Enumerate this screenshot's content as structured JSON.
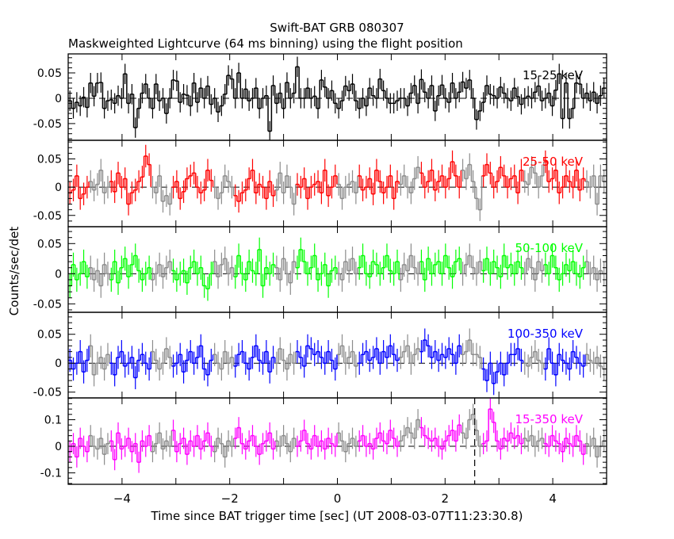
{
  "chart_data": {
    "type": "line",
    "title": "Swift-BAT GRB 080307",
    "subtitle": "Maskweighted Lightcurve (64 ms binning) using the flight position",
    "xlabel": "Time since BAT trigger time [sec] (UT 2008-03-07T11:23:30.8)",
    "ylabel": "Counts/sec/det",
    "xlim": [
      -5,
      5
    ],
    "x_ticks": [
      "-4",
      "-2",
      "0",
      "2",
      "4"
    ],
    "bin_start": -5.0,
    "bin_width": 0.064,
    "marker_line_x": 2.55,
    "series": [
      {
        "name": "15-25 keV",
        "color": "#000000",
        "ylim": [
          -0.083,
          0.0875
        ],
        "y_ticks": [
          "0.05",
          "0",
          "-0.05"
        ],
        "error": 0.02,
        "values": [
          -0.005,
          -0.02,
          -0.008,
          -0.015,
          0.002,
          -0.018,
          0.03,
          0.004,
          0.03,
          0.031,
          -0.02,
          -0.005,
          -0.003,
          -0.01,
          0.005,
          0.0,
          0.048,
          -0.01,
          0.008,
          -0.058,
          -0.02,
          0.01,
          0.028,
          0.0,
          -0.02,
          0.028,
          -0.005,
          0.0,
          -0.03,
          0.0,
          0.036,
          0.034,
          -0.008,
          0.008,
          0.006,
          -0.015,
          0.03,
          -0.008,
          0.02,
          0.0,
          0.024,
          -0.012,
          0.0,
          -0.027,
          -0.015,
          0.008,
          0.045,
          0.038,
          0.0,
          0.05,
          0.0,
          0.018,
          -0.005,
          0.0,
          0.02,
          -0.02,
          0.0,
          0.005,
          -0.065,
          0.025,
          -0.01,
          0.01,
          -0.02,
          0.031,
          0.0,
          0.01,
          0.062,
          0.0,
          0.0,
          0.02,
          0.0,
          0.004,
          -0.02,
          0.036,
          0.022,
          0.0,
          0.015,
          -0.01,
          -0.02,
          -0.005,
          0.024,
          0.015,
          0.028,
          -0.005,
          -0.02,
          0.0,
          -0.015,
          0.02,
          0.005,
          0.0,
          0.038,
          0.015,
          0.0,
          -0.01,
          -0.01,
          -0.005,
          0.0,
          0.0,
          -0.015,
          0.01,
          0.025,
          -0.01,
          0.037,
          0.012,
          0.0,
          0.025,
          -0.025,
          0.005,
          0.026,
          0.0,
          -0.008,
          0.03,
          0.0,
          0.012,
          0.032,
          0.02,
          0.036,
          0.0,
          -0.042,
          -0.025,
          -0.008,
          0.025,
          0.008,
          0.005,
          0.0,
          0.022,
          0.01,
          0.0,
          -0.005,
          0.02,
          0.003,
          -0.012,
          0.0,
          0.004,
          0.0,
          0.012,
          0.024,
          -0.005,
          0.0,
          0.01,
          -0.015,
          0.016,
          0.048,
          -0.04,
          0.03,
          -0.04,
          -0.02,
          0.03,
          0.028,
          0.0,
          0.01,
          -0.005,
          0.012,
          -0.01,
          0.005,
          0.02
        ]
      },
      {
        "name": "25-50 keV",
        "color": "#ff0000",
        "ylim": [
          -0.07,
          0.083
        ],
        "y_ticks": [
          "0.05",
          "0",
          "-0.05"
        ],
        "error": 0.02,
        "values": [
          -0.01,
          -0.005,
          0.02,
          -0.02,
          -0.012,
          0.0,
          0.01,
          -0.005,
          0.005,
          0.03,
          -0.01,
          0.0,
          0.01,
          -0.008,
          0.025,
          0.0,
          0.015,
          -0.03,
          -0.01,
          -0.005,
          0.01,
          0.018,
          0.055,
          0.04,
          0.0,
          -0.01,
          0.02,
          -0.025,
          -0.015,
          -0.03,
          0.0,
          0.01,
          -0.02,
          -0.008,
          0.015,
          0.02,
          0.025,
          0.0,
          -0.01,
          -0.005,
          0.03,
          0.012,
          0.0,
          -0.02,
          -0.01,
          0.02,
          0.01,
          0.0,
          -0.015,
          -0.025,
          -0.01,
          -0.005,
          0.015,
          0.03,
          -0.01,
          0.005,
          0.0,
          -0.02,
          0.01,
          -0.015,
          -0.005,
          0.025,
          -0.01,
          0.02,
          0.0,
          -0.03,
          0.005,
          0.0,
          0.015,
          -0.02,
          0.0,
          0.005,
          0.01,
          -0.01,
          0.03,
          -0.015,
          0.0,
          0.02,
          0.005,
          -0.02,
          0.0,
          0.005,
          0.01,
          -0.01,
          0.02,
          -0.005,
          0.0,
          0.015,
          -0.012,
          0.03,
          0.01,
          -0.01,
          0.0,
          0.02,
          -0.02,
          0.01,
          0.005,
          0.02,
          0.0,
          -0.01,
          0.015,
          0.035,
          0.025,
          0.0,
          0.01,
          0.03,
          -0.005,
          0.01,
          0.02,
          0.0,
          0.015,
          0.045,
          0.02,
          0.0,
          0.03,
          0.015,
          0.04,
          0.01,
          -0.02,
          -0.04,
          0.02,
          0.04,
          0.025,
          0.0,
          0.01,
          0.035,
          0.02,
          0.0,
          0.015,
          0.02,
          -0.01,
          0.03,
          0.01,
          0.005,
          0.035,
          0.025,
          0.0,
          0.02,
          0.045,
          0.01,
          0.015,
          0.03,
          -0.01,
          0.0,
          0.02,
          0.01,
          0.0,
          0.03,
          -0.005,
          0.015,
          0.01,
          0.0,
          0.02,
          -0.03,
          0.02,
          0.01
        ]
      },
      {
        "name": "50-100 keV",
        "color": "#00ff00",
        "ylim": [
          -0.064,
          0.078
        ],
        "y_ticks": [
          "0.05",
          "0",
          "-0.05"
        ],
        "error": 0.02,
        "values": [
          -0.02,
          0.015,
          -0.01,
          0.0,
          0.02,
          -0.005,
          0.01,
          -0.01,
          0.005,
          -0.02,
          0.015,
          0.0,
          -0.01,
          0.02,
          -0.015,
          0.01,
          0.025,
          -0.005,
          0.015,
          0.03,
          0.005,
          -0.01,
          0.0,
          0.01,
          -0.01,
          0.0,
          0.015,
          -0.005,
          0.01,
          0.02,
          0.005,
          -0.01,
          0.0,
          0.005,
          -0.015,
          0.01,
          0.02,
          0.0,
          0.01,
          -0.02,
          -0.025,
          0.0,
          0.02,
          -0.005,
          0.015,
          0.025,
          0.0,
          0.01,
          -0.005,
          0.03,
          0.0,
          -0.01,
          0.02,
          0.005,
          0.0,
          0.04,
          -0.02,
          0.01,
          0.0,
          0.015,
          0.01,
          -0.01,
          0.025,
          0.0,
          -0.015,
          0.02,
          0.01,
          0.04,
          0.02,
          0.0,
          0.01,
          0.03,
          -0.01,
          0.0,
          0.015,
          -0.02,
          0.005,
          0.01,
          0.0,
          -0.01,
          0.02,
          0.005,
          0.025,
          0.0,
          0.01,
          0.03,
          0.0,
          -0.005,
          0.02,
          0.015,
          0.0,
          0.01,
          0.03,
          0.005,
          0.0,
          0.02,
          -0.01,
          0.015,
          0.005,
          0.03,
          0.01,
          0.0,
          0.02,
          -0.01,
          0.025,
          0.0,
          0.015,
          0.02,
          0.0,
          0.03,
          0.01,
          -0.005,
          0.02,
          0.025,
          0.0,
          0.015,
          0.03,
          0.01,
          0.0,
          0.02,
          0.005,
          0.025,
          0.0,
          0.02,
          0.01,
          -0.005,
          0.03,
          0.01,
          0.015,
          0.0,
          0.02,
          0.01,
          0.0,
          0.025,
          0.01,
          -0.01,
          0.02,
          0.005,
          0.015,
          0.0,
          0.03,
          0.01,
          -0.01,
          0.0,
          0.015,
          0.005,
          0.02,
          0.0,
          -0.005,
          0.01,
          0.02,
          0.0,
          0.01,
          -0.01,
          0.005,
          0.0
        ]
      },
      {
        "name": "100-350 keV",
        "color": "#0000ff",
        "ylim": [
          -0.06,
          0.088
        ],
        "y_ticks": [
          "0.05",
          "0",
          "-0.05"
        ],
        "error": 0.02,
        "values": [
          0.005,
          -0.01,
          0.0,
          0.02,
          -0.015,
          0.005,
          0.03,
          -0.02,
          0.0,
          0.01,
          -0.01,
          0.015,
          0.0,
          -0.02,
          0.01,
          0.02,
          -0.005,
          0.0,
          0.01,
          -0.025,
          0.005,
          0.015,
          0.0,
          -0.01,
          0.02,
          0.005,
          -0.01,
          0.0,
          0.025,
          0.01,
          -0.005,
          0.0,
          0.015,
          -0.015,
          0.005,
          0.02,
          0.0,
          0.01,
          0.03,
          -0.01,
          -0.02,
          0.005,
          0.015,
          0.0,
          -0.01,
          0.02,
          0.0,
          0.01,
          -0.005,
          0.015,
          0.02,
          0.0,
          -0.01,
          0.01,
          0.03,
          0.005,
          0.0,
          0.02,
          -0.015,
          0.01,
          0.0,
          0.025,
          0.005,
          -0.01,
          0.015,
          0.0,
          0.02,
          0.01,
          -0.005,
          0.03,
          0.025,
          0.015,
          0.02,
          0.01,
          0.0,
          0.02,
          0.005,
          -0.01,
          0.015,
          0.03,
          0.0,
          0.01,
          0.02,
          -0.005,
          0.0,
          0.015,
          0.02,
          0.005,
          0.01,
          0.025,
          0.0,
          0.02,
          0.01,
          0.03,
          0.015,
          0.005,
          0.01,
          0.02,
          0.03,
          0.0,
          0.015,
          0.025,
          0.02,
          0.04,
          0.03,
          0.01,
          0.02,
          0.005,
          0.015,
          0.01,
          0.025,
          0.015,
          0.0,
          0.03,
          0.015,
          0.02,
          0.04,
          0.015,
          0.015,
          0.01,
          -0.01,
          -0.03,
          0.0,
          -0.035,
          -0.015,
          0.0,
          -0.02,
          0.0,
          0.015,
          0.015,
          0.025,
          0.005,
          0.0,
          -0.005,
          0.01,
          0.02,
          0.005,
          0.0,
          -0.01,
          0.025,
          0.0,
          -0.02,
          0.015,
          0.005,
          0.0,
          -0.01,
          0.02,
          0.01,
          0.0,
          -0.005,
          0.015,
          0.005,
          0.0,
          0.01,
          -0.005,
          -0.01
        ]
      },
      {
        "name": "15-350 keV",
        "color": "#ff00ff",
        "ylim": [
          -0.143,
          0.182
        ],
        "y_ticks": [
          "0.1",
          "0",
          "-0.1"
        ],
        "error": 0.04,
        "values": [
          -0.02,
          0.01,
          -0.04,
          0.03,
          0.0,
          -0.02,
          0.04,
          0.0,
          -0.01,
          0.03,
          -0.03,
          0.01,
          0.02,
          -0.05,
          0.05,
          -0.01,
          0.0,
          0.03,
          -0.02,
          0.01,
          -0.06,
          0.02,
          0.0,
          0.04,
          -0.02,
          0.01,
          0.05,
          -0.01,
          0.02,
          0.0,
          0.06,
          -0.02,
          0.01,
          0.03,
          -0.03,
          0.02,
          0.0,
          0.04,
          -0.01,
          0.02,
          0.05,
          0.0,
          -0.02,
          0.03,
          0.01,
          -0.04,
          0.02,
          0.0,
          0.03,
          0.07,
          0.01,
          -0.01,
          0.02,
          0.04,
          0.0,
          -0.03,
          0.01,
          0.02,
          0.05,
          -0.01,
          0.02,
          0.0,
          0.04,
          0.01,
          -0.02,
          0.03,
          0.0,
          0.02,
          0.06,
          0.01,
          -0.01,
          0.04,
          0.0,
          0.02,
          -0.01,
          0.03,
          0.01,
          0.0,
          0.05,
          0.02,
          -0.02,
          0.01,
          0.03,
          0.0,
          0.02,
          0.04,
          0.0,
          0.01,
          -0.01,
          0.03,
          0.05,
          0.02,
          0.01,
          0.06,
          0.03,
          0.0,
          0.02,
          0.04,
          0.07,
          0.05,
          0.03,
          0.1,
          0.07,
          0.04,
          0.03,
          0.02,
          0.03,
          0.0,
          -0.01,
          0.02,
          0.04,
          0.06,
          0.02,
          0.08,
          0.05,
          0.03,
          0.1,
          0.12,
          0.06,
          0.0,
          0.01,
          0.02,
          0.14,
          0.09,
          0.02,
          -0.01,
          0.03,
          0.02,
          0.05,
          0.03,
          0.04,
          0.01,
          0.03,
          0.02,
          0.04,
          0.0,
          0.02,
          0.03,
          0.01,
          0.0,
          0.04,
          0.02,
          0.01,
          -0.02,
          0.03,
          0.01,
          0.0,
          0.04,
          0.02,
          -0.03,
          0.01,
          0.0,
          0.03,
          -0.04,
          0.0,
          0.02
        ]
      }
    ]
  }
}
